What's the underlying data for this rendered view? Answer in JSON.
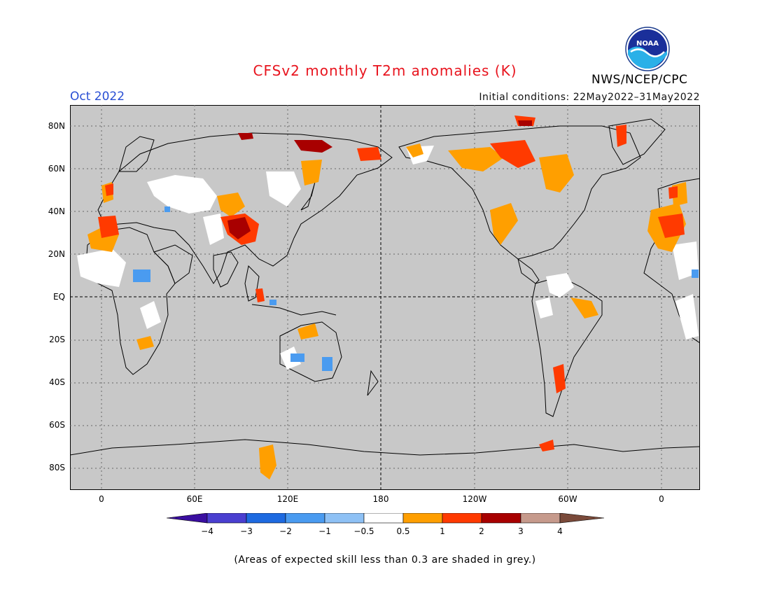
{
  "title": "CFSv2 monthly T2m anomalies (K)",
  "month": "Oct 2022",
  "initial_conditions": "Initial conditions: 22May2022–31May2022",
  "agency": "NWS/NCEP/CPC",
  "logo_text": "NOAA",
  "map": {
    "lat_labels": [
      "80N",
      "60N",
      "40N",
      "20N",
      "EQ",
      "20S",
      "40S",
      "60S",
      "80S"
    ],
    "lon_labels": [
      "0",
      "60E",
      "120E",
      "180",
      "120W",
      "60W",
      "0"
    ],
    "ocean_color": "#c8c8c8"
  },
  "legend": {
    "labels": [
      "−4",
      "−3",
      "−2",
      "−1",
      "−0.5",
      "0.5",
      "1",
      "2",
      "3",
      "4"
    ],
    "colors": [
      "#3a0ea0",
      "#4a3fd0",
      "#1e6ae0",
      "#4a9bf0",
      "#8ec1f5",
      "#ffffff",
      "#ff9f00",
      "#ff3a00",
      "#a80000",
      "#c69a8c",
      "#7a4a3a"
    ]
  },
  "footnote": "(Areas of expected skill less than 0.3 are shaded in grey.)"
}
